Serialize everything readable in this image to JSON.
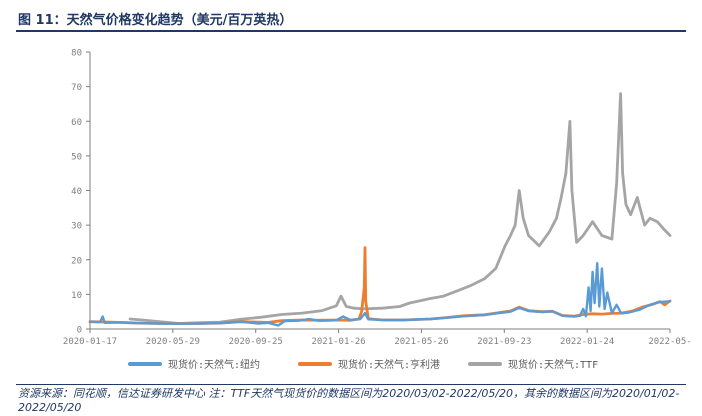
{
  "figure": {
    "title": "图 11：天然气价格变化趋势（美元/百万英热）",
    "note": "资源来源：同花顺，信达证券研发中心   注：TTF天然气现货价的数据区间为2020/03/02-2022/05/20，其余的数据区间为2020/01/02-2022/05/20"
  },
  "chart_data": {
    "type": "line",
    "title": "",
    "xlabel": "",
    "ylabel": "",
    "ylim": [
      0,
      80
    ],
    "yticks": [
      0,
      10,
      20,
      30,
      40,
      50,
      60,
      70,
      80
    ],
    "xlim": [
      "2020-01-02",
      "2022-05-20"
    ],
    "xtick_labels": [
      "2020-01-17",
      "2020-05-29",
      "2020-09-25",
      "2021-01-26",
      "2021-05-26",
      "2021-09-23",
      "2022-01-24",
      "2022-05-"
    ],
    "grid": false,
    "legend_position": "bottom",
    "series": [
      {
        "name": "现货价:天然气:纽约",
        "color": "#5b9bd5",
        "points": [
          [
            "2020-01-02",
            2.1
          ],
          [
            "2020-01-17",
            2.0
          ],
          [
            "2020-01-21",
            3.6
          ],
          [
            "2020-01-24",
            1.8
          ],
          [
            "2020-02-15",
            1.9
          ],
          [
            "2020-03-15",
            1.7
          ],
          [
            "2020-04-15",
            1.6
          ],
          [
            "2020-05-15",
            1.5
          ],
          [
            "2020-06-15",
            1.6
          ],
          [
            "2020-07-15",
            1.7
          ],
          [
            "2020-08-15",
            2.1
          ],
          [
            "2020-09-10",
            1.6
          ],
          [
            "2020-09-25",
            1.8
          ],
          [
            "2020-10-10",
            1.0
          ],
          [
            "2020-10-20",
            2.3
          ],
          [
            "2020-11-10",
            2.4
          ],
          [
            "2020-11-25",
            2.9
          ],
          [
            "2020-12-10",
            2.4
          ],
          [
            "2021-01-05",
            2.5
          ],
          [
            "2021-01-15",
            3.6
          ],
          [
            "2021-01-26",
            2.6
          ],
          [
            "2021-02-10",
            2.9
          ],
          [
            "2021-02-17",
            4.6
          ],
          [
            "2021-02-22",
            2.8
          ],
          [
            "2021-03-15",
            2.6
          ],
          [
            "2021-04-15",
            2.6
          ],
          [
            "2021-05-26",
            2.9
          ],
          [
            "2021-06-15",
            3.2
          ],
          [
            "2021-07-15",
            3.7
          ],
          [
            "2021-08-15",
            4.0
          ],
          [
            "2021-09-05",
            4.6
          ],
          [
            "2021-09-23",
            5.0
          ],
          [
            "2021-10-06",
            6.1
          ],
          [
            "2021-10-20",
            5.2
          ],
          [
            "2021-11-10",
            4.9
          ],
          [
            "2021-11-25",
            5.1
          ],
          [
            "2021-12-10",
            3.8
          ],
          [
            "2021-12-27",
            3.6
          ],
          [
            "2022-01-05",
            3.8
          ],
          [
            "2022-01-10",
            5.8
          ],
          [
            "2022-01-14",
            3.7
          ],
          [
            "2022-01-18",
            12.0
          ],
          [
            "2022-01-21",
            5.2
          ],
          [
            "2022-01-24",
            16.5
          ],
          [
            "2022-01-27",
            7.5
          ],
          [
            "2022-01-31",
            19.0
          ],
          [
            "2022-02-03",
            6.5
          ],
          [
            "2022-02-07",
            17.5
          ],
          [
            "2022-02-11",
            5.8
          ],
          [
            "2022-02-15",
            10.5
          ],
          [
            "2022-02-22",
            4.6
          ],
          [
            "2022-03-01",
            7.0
          ],
          [
            "2022-03-08",
            4.5
          ],
          [
            "2022-03-20",
            4.8
          ],
          [
            "2022-04-05",
            5.6
          ],
          [
            "2022-04-20",
            7.0
          ],
          [
            "2022-05-05",
            7.8
          ],
          [
            "2022-05-20",
            8.0
          ]
        ]
      },
      {
        "name": "现货价:天然气:亨利港",
        "color": "#ed7d31",
        "points": [
          [
            "2020-01-02",
            2.1
          ],
          [
            "2020-02-15",
            1.9
          ],
          [
            "2020-03-15",
            1.7
          ],
          [
            "2020-04-15",
            1.6
          ],
          [
            "2020-05-15",
            1.6
          ],
          [
            "2020-06-15",
            1.6
          ],
          [
            "2020-07-15",
            1.7
          ],
          [
            "2020-08-15",
            2.1
          ],
          [
            "2020-09-25",
            1.9
          ],
          [
            "2020-10-15",
            2.4
          ],
          [
            "2020-11-15",
            2.6
          ],
          [
            "2020-12-15",
            2.5
          ],
          [
            "2021-01-10",
            2.6
          ],
          [
            "2021-01-26",
            2.5
          ],
          [
            "2021-02-08",
            2.9
          ],
          [
            "2021-02-12",
            5.0
          ],
          [
            "2021-02-16",
            12.0
          ],
          [
            "2021-02-17",
            23.5
          ],
          [
            "2021-02-18",
            8.0
          ],
          [
            "2021-02-22",
            3.0
          ],
          [
            "2021-03-15",
            2.6
          ],
          [
            "2021-04-15",
            2.6
          ],
          [
            "2021-05-26",
            2.9
          ],
          [
            "2021-06-15",
            3.2
          ],
          [
            "2021-07-15",
            3.8
          ],
          [
            "2021-08-15",
            4.1
          ],
          [
            "2021-09-05",
            4.7
          ],
          [
            "2021-09-23",
            5.2
          ],
          [
            "2021-10-06",
            6.3
          ],
          [
            "2021-10-20",
            5.3
          ],
          [
            "2021-11-10",
            5.0
          ],
          [
            "2021-11-25",
            5.1
          ],
          [
            "2021-12-10",
            3.9
          ],
          [
            "2021-12-27",
            3.7
          ],
          [
            "2022-01-10",
            4.2
          ],
          [
            "2022-01-24",
            4.4
          ],
          [
            "2022-02-07",
            4.3
          ],
          [
            "2022-02-22",
            4.5
          ],
          [
            "2022-03-08",
            4.6
          ],
          [
            "2022-03-25",
            5.2
          ],
          [
            "2022-04-10",
            6.4
          ],
          [
            "2022-04-25",
            7.2
          ],
          [
            "2022-05-05",
            7.9
          ],
          [
            "2022-05-12",
            7.0
          ],
          [
            "2022-05-20",
            8.1
          ]
        ]
      },
      {
        "name": "现货价:天然气:TTF",
        "color": "#a5a5a5",
        "points": [
          [
            "2020-03-02",
            2.9
          ],
          [
            "2020-03-20",
            2.6
          ],
          [
            "2020-04-15",
            2.1
          ],
          [
            "2020-05-15",
            1.6
          ],
          [
            "2020-06-10",
            1.8
          ],
          [
            "2020-07-15",
            2.0
          ],
          [
            "2020-08-15",
            2.8
          ],
          [
            "2020-09-15",
            3.4
          ],
          [
            "2020-10-15",
            4.2
          ],
          [
            "2020-11-15",
            4.6
          ],
          [
            "2020-12-15",
            5.3
          ],
          [
            "2021-01-05",
            6.7
          ],
          [
            "2021-01-12",
            9.5
          ],
          [
            "2021-01-20",
            6.5
          ],
          [
            "2021-02-01",
            6.0
          ],
          [
            "2021-02-15",
            5.8
          ],
          [
            "2021-03-15",
            6.0
          ],
          [
            "2021-04-10",
            6.5
          ],
          [
            "2021-04-25",
            7.5
          ],
          [
            "2021-05-26",
            8.8
          ],
          [
            "2021-06-15",
            9.5
          ],
          [
            "2021-07-05",
            11.0
          ],
          [
            "2021-07-25",
            12.5
          ],
          [
            "2021-08-15",
            14.5
          ],
          [
            "2021-09-01",
            17.5
          ],
          [
            "2021-09-15",
            24.0
          ],
          [
            "2021-09-23",
            27.0
          ],
          [
            "2021-09-30",
            30.0
          ],
          [
            "2021-10-06",
            40.0
          ],
          [
            "2021-10-12",
            32.0
          ],
          [
            "2021-10-20",
            27.0
          ],
          [
            "2021-11-05",
            24.0
          ],
          [
            "2021-11-20",
            28.0
          ],
          [
            "2021-12-01",
            32.0
          ],
          [
            "2021-12-08",
            38.0
          ],
          [
            "2021-12-15",
            45.0
          ],
          [
            "2021-12-21",
            60.0
          ],
          [
            "2021-12-24",
            40.0
          ],
          [
            "2021-12-31",
            25.0
          ],
          [
            "2022-01-10",
            27.0
          ],
          [
            "2022-01-24",
            31.0
          ],
          [
            "2022-02-07",
            27.0
          ],
          [
            "2022-02-22",
            26.0
          ],
          [
            "2022-03-01",
            42.0
          ],
          [
            "2022-03-04",
            55.0
          ],
          [
            "2022-03-07",
            68.0
          ],
          [
            "2022-03-10",
            45.0
          ],
          [
            "2022-03-15",
            36.0
          ],
          [
            "2022-03-22",
            33.0
          ],
          [
            "2022-04-01",
            38.0
          ],
          [
            "2022-04-05",
            35.0
          ],
          [
            "2022-04-12",
            30.0
          ],
          [
            "2022-04-20",
            32.0
          ],
          [
            "2022-05-01",
            31.0
          ],
          [
            "2022-05-10",
            29.0
          ],
          [
            "2022-05-20",
            27.0
          ]
        ]
      }
    ]
  }
}
